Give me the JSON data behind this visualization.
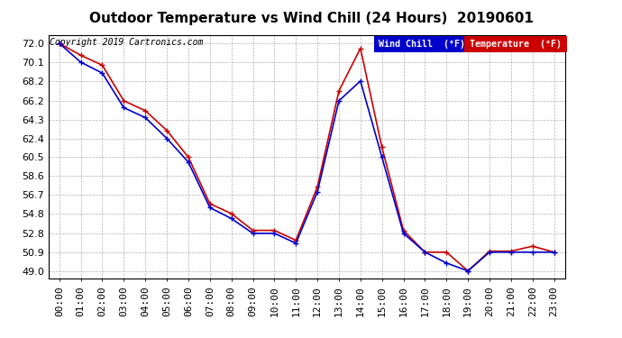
{
  "title": "Outdoor Temperature vs Wind Chill (24 Hours)  20190601",
  "copyright": "Copyright 2019 Cartronics.com",
  "x_labels": [
    "00:00",
    "01:00",
    "02:00",
    "03:00",
    "04:00",
    "05:00",
    "06:00",
    "07:00",
    "08:00",
    "09:00",
    "10:00",
    "11:00",
    "12:00",
    "13:00",
    "14:00",
    "15:00",
    "16:00",
    "17:00",
    "18:00",
    "19:00",
    "20:00",
    "21:00",
    "22:00",
    "23:00"
  ],
  "temperature": [
    72.0,
    70.8,
    69.8,
    66.2,
    65.2,
    63.2,
    60.5,
    55.8,
    54.8,
    53.1,
    53.1,
    52.1,
    57.5,
    67.2,
    71.5,
    61.5,
    53.1,
    50.9,
    50.9,
    49.0,
    51.0,
    51.0,
    51.5,
    50.9
  ],
  "wind_chill": [
    72.0,
    70.1,
    69.0,
    65.5,
    64.5,
    62.4,
    60.0,
    55.4,
    54.3,
    52.8,
    52.8,
    51.8,
    57.0,
    66.2,
    68.2,
    60.5,
    52.8,
    50.9,
    49.8,
    49.0,
    50.9,
    50.9,
    50.9,
    50.9
  ],
  "y_ticks": [
    49.0,
    50.9,
    52.8,
    54.8,
    56.7,
    58.6,
    60.5,
    62.4,
    64.3,
    66.2,
    68.2,
    70.1,
    72.0
  ],
  "ylim": [
    48.2,
    72.8
  ],
  "temp_color": "#cc0000",
  "wind_color": "#0000cc",
  "bg_color": "#ffffff",
  "grid_color": "#aaaaaa",
  "title_fontsize": 11,
  "axis_fontsize": 8,
  "copyright_fontsize": 7
}
